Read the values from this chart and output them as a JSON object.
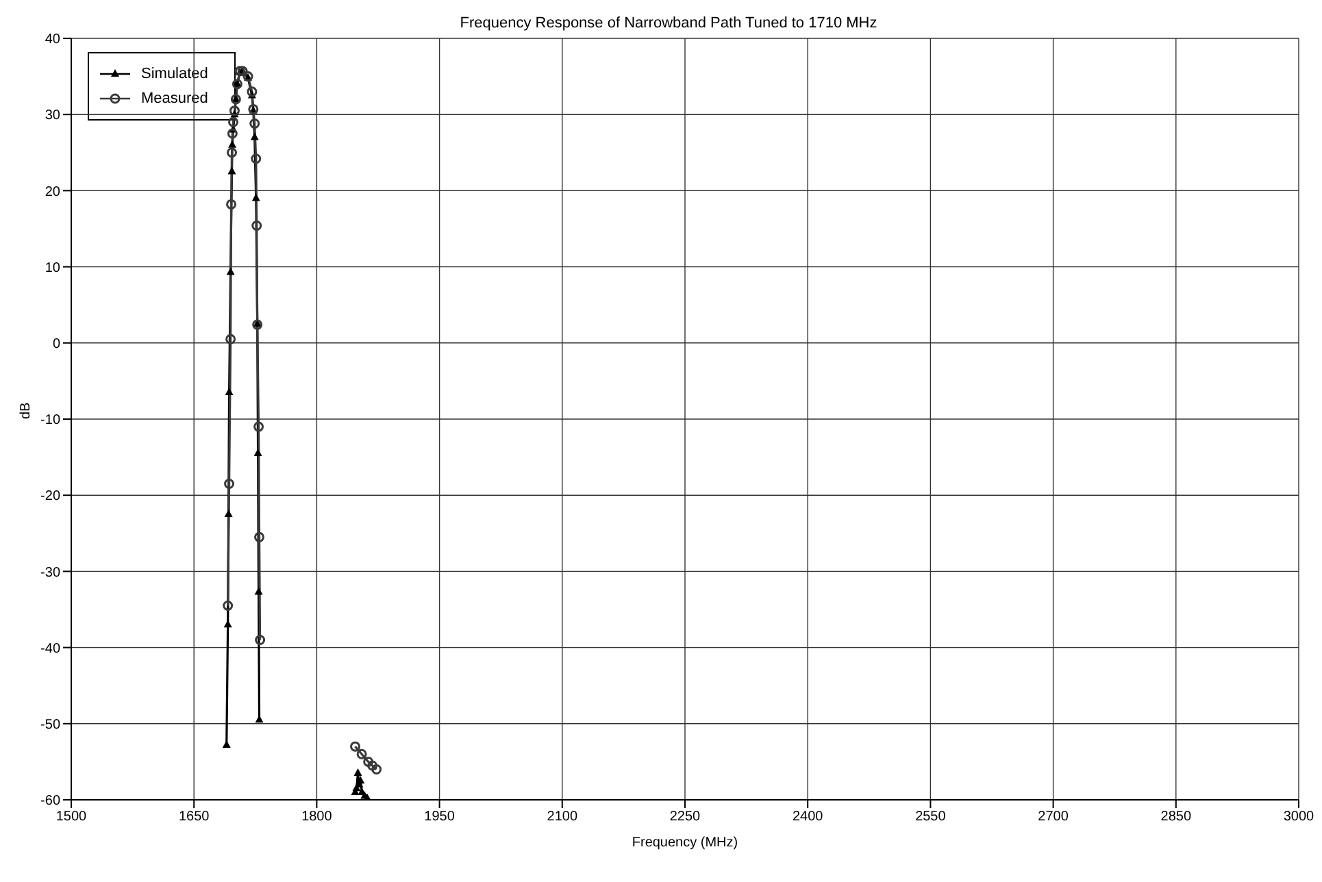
{
  "chart_data": {
    "type": "line",
    "title": "Frequency Response of Narrowband Path Tuned to 1710 MHz",
    "xlabel": "Frequency (MHz)",
    "ylabel": "dB",
    "xlim": [
      1500,
      3000
    ],
    "ylim": [
      -60,
      40
    ],
    "xticks": [
      1500,
      1650,
      1800,
      1950,
      2100,
      2250,
      2400,
      2550,
      2700,
      2850,
      3000
    ],
    "yticks": [
      -60,
      -50,
      -40,
      -30,
      -20,
      -10,
      0,
      10,
      20,
      30,
      40
    ],
    "grid": true,
    "legend": "top left",
    "series": [
      {
        "name": "Simulated",
        "color": "#000000",
        "marker": "triangle",
        "x": [
          1689.8,
          1691.4,
          1692.2,
          1693,
          1694.7,
          1696.3,
          1696.8,
          1698,
          1699.6,
          1701.2,
          1702.9,
          1706.1,
          1709.4,
          1716,
          1720.9,
          1722.5,
          1724.1,
          1725.8,
          1727.4,
          1728.2,
          1729,
          1729.8,
          1790,
          1847,
          1848.6,
          1850.3,
          1851.9,
          1853.5,
          1855.2,
          1858.5,
          1861.7
        ],
        "values": [
          -52.8,
          -37,
          -22.5,
          -6.5,
          9.3,
          22.5,
          26,
          28,
          30,
          32,
          34,
          35.5,
          35.7,
          34.8,
          32.5,
          30.5,
          27,
          19,
          2.5,
          -14.5,
          -32.7,
          -49.5,
          null,
          -59,
          -58.5,
          -56.5,
          -58,
          -57.5,
          -59,
          -59.5,
          -59.8
        ]
      },
      {
        "name": "Measured",
        "color": "#3a3a3a",
        "marker": "circle",
        "x": [
          1691.4,
          1693,
          1694.7,
          1695.5,
          1696.3,
          1697,
          1698,
          1699.6,
          1701.2,
          1702.9,
          1706.1,
          1709.4,
          1716,
          1720.9,
          1722.5,
          1724.1,
          1725.8,
          1726.6,
          1727.4,
          1729,
          1729.8,
          1730.7,
          1790,
          1847,
          1855,
          1863,
          1868,
          1873
        ],
        "values": [
          -34.5,
          -18.5,
          0.5,
          18.2,
          25,
          27.5,
          29,
          30.5,
          32,
          34,
          35.7,
          35.7,
          35,
          33,
          30.7,
          28.8,
          24.2,
          15.4,
          2.4,
          -11,
          -25.5,
          -39,
          null,
          -53,
          -54,
          -55,
          -55.5,
          -56
        ]
      }
    ]
  }
}
